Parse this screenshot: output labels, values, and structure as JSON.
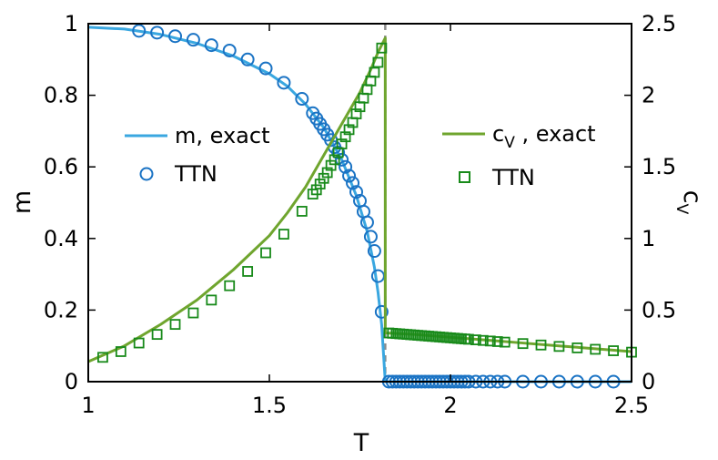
{
  "colors": {
    "m_series": "#3aa7e0",
    "m_marker": "#1a73c4",
    "cv_series": "#6fa52e",
    "cv_marker": "#188a1a",
    "transition_line": "#8c8c8c"
  },
  "chart_data": {
    "type": "line",
    "xlabel": "T",
    "ylabel_left": "m",
    "ylabel_right": {
      "base": "c",
      "sub": "V"
    },
    "xlim": [
      1,
      2.5
    ],
    "ylim_left": [
      0,
      1
    ],
    "ylim_right": [
      0,
      2.5
    ],
    "x_ticks": [
      1,
      1.5,
      2,
      2.5
    ],
    "x_tick_labels": [
      "1",
      "1.5",
      "2",
      "2.5"
    ],
    "y_left_ticks": [
      0,
      0.2,
      0.4,
      0.6,
      0.8,
      1
    ],
    "y_left_tick_labels": [
      "0",
      "0.2",
      "0.4",
      "0.6",
      "0.8",
      "1"
    ],
    "y_right_ticks": [
      0,
      0.5,
      1,
      1.5,
      2,
      2.5
    ],
    "y_right_tick_labels": [
      "0",
      "0.5",
      "1",
      "1.5",
      "2",
      "2.5"
    ],
    "grid": false,
    "critical_T": 1.82,
    "legend_left": [
      {
        "label": "m, exact",
        "marker": "line"
      },
      {
        "label": "TTN",
        "marker": "circle"
      }
    ],
    "legend_right": [
      {
        "label_base": "c",
        "label_sub": "V",
        "label_rest": " , exact",
        "marker": "line"
      },
      {
        "label": "TTN",
        "marker": "square"
      }
    ],
    "series": [
      {
        "name": "m, exact",
        "axis": "left",
        "style": "line",
        "x": [
          1.0,
          1.1,
          1.2,
          1.3,
          1.4,
          1.5,
          1.55,
          1.6,
          1.65,
          1.7,
          1.74,
          1.77,
          1.79,
          1.8,
          1.81,
          1.82,
          1.9,
          2.0,
          2.2,
          2.5
        ],
        "y": [
          0.99,
          0.985,
          0.97,
          0.945,
          0.91,
          0.86,
          0.825,
          0.775,
          0.71,
          0.62,
          0.52,
          0.42,
          0.32,
          0.25,
          0.16,
          0.0,
          0.0,
          0.0,
          0.0,
          0.0
        ]
      },
      {
        "name": "TTN",
        "axis": "left",
        "style": "circle",
        "x": [
          1.14,
          1.19,
          1.24,
          1.29,
          1.34,
          1.39,
          1.44,
          1.49,
          1.54,
          1.59,
          1.62,
          1.63,
          1.64,
          1.65,
          1.66,
          1.67,
          1.68,
          1.69,
          1.7,
          1.71,
          1.72,
          1.73,
          1.74,
          1.75,
          1.76,
          1.77,
          1.78,
          1.79,
          1.8,
          1.81,
          1.83,
          1.84,
          1.85,
          1.86,
          1.87,
          1.88,
          1.89,
          1.9,
          1.91,
          1.92,
          1.93,
          1.94,
          1.95,
          1.96,
          1.97,
          1.98,
          1.99,
          2.0,
          2.01,
          2.02,
          2.03,
          2.04,
          2.05,
          2.07,
          2.09,
          2.11,
          2.13,
          2.15,
          2.2,
          2.25,
          2.3,
          2.35,
          2.4,
          2.45
        ],
        "y": [
          0.98,
          0.975,
          0.965,
          0.955,
          0.94,
          0.925,
          0.9,
          0.875,
          0.835,
          0.79,
          0.75,
          0.735,
          0.72,
          0.705,
          0.69,
          0.675,
          0.655,
          0.64,
          0.62,
          0.6,
          0.575,
          0.555,
          0.53,
          0.505,
          0.475,
          0.445,
          0.405,
          0.365,
          0.295,
          0.195,
          0.0,
          0.0,
          0.0,
          0.0,
          0.0,
          0.0,
          0.0,
          0.0,
          0.0,
          0.0,
          0.0,
          0.0,
          0.0,
          0.0,
          0.0,
          0.0,
          0.0,
          0.0,
          0.0,
          0.0,
          0.0,
          0.0,
          0.0,
          0.0,
          0.0,
          0.0,
          0.0,
          0.0,
          0.0,
          0.0,
          0.0,
          0.0,
          0.0,
          0.0
        ]
      },
      {
        "name": "c_V, exact",
        "axis": "right",
        "style": "line",
        "x": [
          1.0,
          1.1,
          1.2,
          1.3,
          1.4,
          1.5,
          1.55,
          1.6,
          1.65,
          1.7,
          1.75,
          1.78,
          1.8,
          1.82,
          1.82,
          1.9,
          2.0,
          2.1,
          2.2,
          2.3,
          2.4,
          2.5
        ],
        "y": [
          0.14,
          0.25,
          0.4,
          0.57,
          0.78,
          1.02,
          1.18,
          1.36,
          1.58,
          1.8,
          2.02,
          2.18,
          2.3,
          2.4,
          0.34,
          0.33,
          0.31,
          0.29,
          0.27,
          0.25,
          0.23,
          0.21
        ]
      },
      {
        "name": "TTN",
        "axis": "right",
        "style": "square",
        "x": [
          1.04,
          1.09,
          1.14,
          1.19,
          1.24,
          1.29,
          1.34,
          1.39,
          1.44,
          1.49,
          1.54,
          1.59,
          1.62,
          1.63,
          1.64,
          1.65,
          1.66,
          1.67,
          1.68,
          1.69,
          1.7,
          1.71,
          1.72,
          1.73,
          1.74,
          1.75,
          1.76,
          1.77,
          1.78,
          1.79,
          1.8,
          1.81,
          1.83,
          1.84,
          1.85,
          1.86,
          1.87,
          1.88,
          1.89,
          1.9,
          1.91,
          1.92,
          1.93,
          1.94,
          1.95,
          1.96,
          1.97,
          1.98,
          1.99,
          2.0,
          2.01,
          2.02,
          2.03,
          2.04,
          2.05,
          2.07,
          2.09,
          2.11,
          2.13,
          2.15,
          2.2,
          2.25,
          2.3,
          2.35,
          2.4,
          2.45,
          2.5
        ],
        "y": [
          0.17,
          0.21,
          0.27,
          0.33,
          0.4,
          0.48,
          0.57,
          0.67,
          0.77,
          0.9,
          1.03,
          1.19,
          1.31,
          1.34,
          1.38,
          1.42,
          1.46,
          1.51,
          1.55,
          1.6,
          1.66,
          1.71,
          1.76,
          1.81,
          1.87,
          1.92,
          1.98,
          2.04,
          2.1,
          2.16,
          2.23,
          2.33,
          0.34,
          0.338,
          0.336,
          0.334,
          0.332,
          0.33,
          0.328,
          0.326,
          0.324,
          0.322,
          0.32,
          0.318,
          0.316,
          0.314,
          0.312,
          0.31,
          0.308,
          0.306,
          0.304,
          0.302,
          0.3,
          0.298,
          0.296,
          0.292,
          0.288,
          0.284,
          0.28,
          0.276,
          0.266,
          0.256,
          0.246,
          0.236,
          0.226,
          0.216,
          0.206
        ]
      }
    ]
  }
}
